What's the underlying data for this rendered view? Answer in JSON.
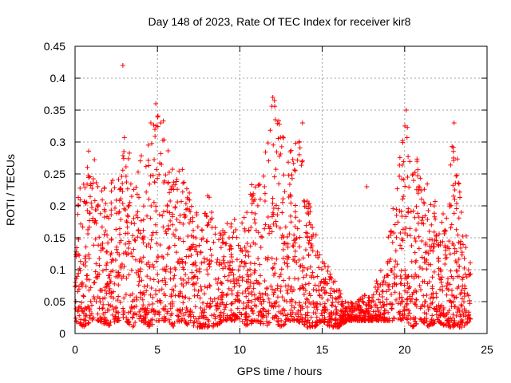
{
  "chart_data": {
    "type": "scatter",
    "title": "Day 148 of 2023, Rate Of TEC Index for receiver kir8",
    "xlabel": "GPS time / hours",
    "ylabel": "ROTI / TECUs",
    "xlim": [
      0,
      25
    ],
    "ylim": [
      0,
      0.45
    ],
    "x_ticks": [
      "0",
      "5",
      "10",
      "15",
      "20",
      "25"
    ],
    "y_ticks": [
      "0",
      "0.05",
      "0.1",
      "0.15",
      "0.2",
      "0.25",
      "0.3",
      "0.35",
      "0.4",
      "0.45"
    ],
    "grid": true,
    "marker": "+",
    "color": "#ff0000",
    "envelope": {
      "x": [
        0,
        0.5,
        1,
        1.5,
        2,
        2.5,
        3,
        3.5,
        4,
        4.5,
        5,
        5.5,
        6,
        6.5,
        7,
        7.5,
        8,
        8.5,
        9,
        9.5,
        10,
        10.5,
        11,
        11.5,
        12,
        12.5,
        13,
        13.5,
        14,
        14.5,
        15,
        15.5,
        16,
        16.5,
        17,
        17.5,
        18,
        18.5,
        19,
        19.5,
        20,
        20.5,
        21,
        21.5,
        22,
        22.5,
        23,
        23.5,
        24
      ],
      "max": [
        0.25,
        0.26,
        0.3,
        0.24,
        0.24,
        0.26,
        0.32,
        0.26,
        0.28,
        0.3,
        0.36,
        0.33,
        0.25,
        0.26,
        0.22,
        0.2,
        0.24,
        0.18,
        0.17,
        0.2,
        0.16,
        0.23,
        0.24,
        0.3,
        0.37,
        0.32,
        0.28,
        0.33,
        0.25,
        0.17,
        0.12,
        0.1,
        0.07,
        0.05,
        0.05,
        0.06,
        0.06,
        0.1,
        0.15,
        0.23,
        0.35,
        0.3,
        0.25,
        0.23,
        0.2,
        0.21,
        0.33,
        0.2,
        0.12
      ],
      "min": [
        0.02,
        0.01,
        0.02,
        0.02,
        0.01,
        0.02,
        0.02,
        0.01,
        0.02,
        0.01,
        0.02,
        0.02,
        0.01,
        0.02,
        0.01,
        0.01,
        0.01,
        0.01,
        0.02,
        0.02,
        0.02,
        0.01,
        0.02,
        0.01,
        0.02,
        0.01,
        0.02,
        0.02,
        0.01,
        0.01,
        0.02,
        0.01,
        0.01,
        0.02,
        0.02,
        0.02,
        0.02,
        0.02,
        0.02,
        0.02,
        0.02,
        0.01,
        0.02,
        0.01,
        0.02,
        0.01,
        0.01,
        0.01,
        0.02
      ]
    },
    "outliers": [
      {
        "x": 2.9,
        "y": 0.42
      },
      {
        "x": 4.9,
        "y": 0.36
      },
      {
        "x": 12.1,
        "y": 0.365
      },
      {
        "x": 12.0,
        "y": 0.37
      },
      {
        "x": 20.1,
        "y": 0.35
      },
      {
        "x": 23.0,
        "y": 0.33
      },
      {
        "x": 17.7,
        "y": 0.23
      },
      {
        "x": 13.8,
        "y": 0.33
      },
      {
        "x": 4.6,
        "y": 0.33
      },
      {
        "x": 5.2,
        "y": 0.33
      }
    ]
  }
}
